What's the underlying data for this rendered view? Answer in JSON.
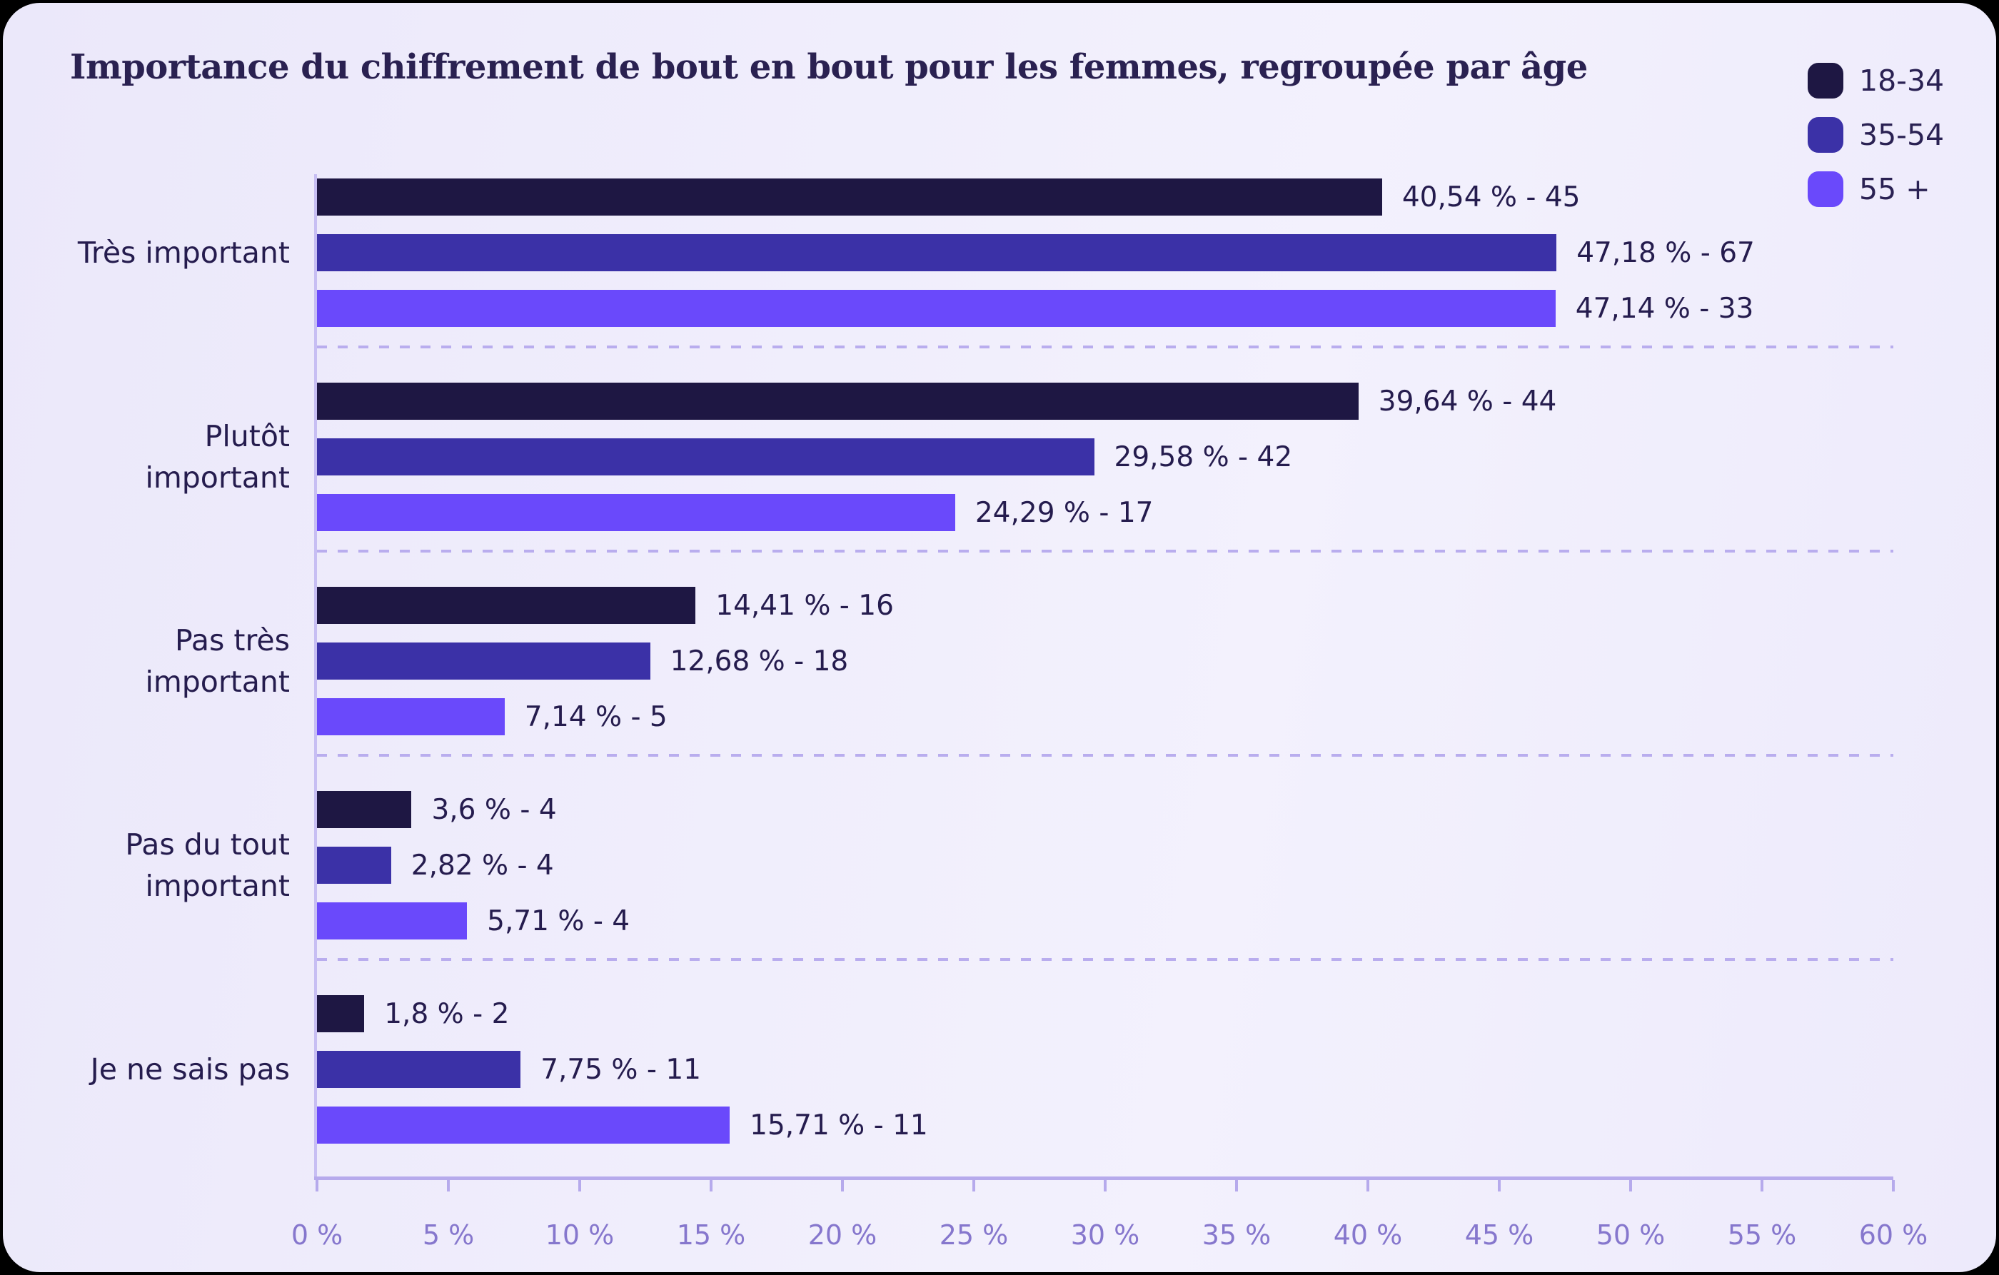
{
  "title": "Importance du chiffrement de bout en bout pour les femmes, regroupée par âge",
  "legend": {
    "items": [
      {
        "label": "18-34",
        "color": "#1e1743"
      },
      {
        "label": "35-54",
        "color": "#3b31a7"
      },
      {
        "label": "55 +",
        "color": "#6a49fb"
      }
    ]
  },
  "colors": {
    "outside": "#000000",
    "card_background_left": "#ebe8fa",
    "card_background_right": "#f3f1fd",
    "title_text": "#2a2151",
    "label_text": "#251c4e",
    "axis_line": "#b6aaec",
    "vertical_axis_line": "#c7bef3",
    "grid_dash": "#b9adee",
    "tick_label": "#8677cd",
    "series": [
      "#1e1743",
      "#3b31a7",
      "#6a49fb"
    ]
  },
  "chart_data": {
    "type": "bar",
    "orientation": "horizontal",
    "title": "Importance du chiffrement de bout en bout pour les femmes, regroupée par âge",
    "categories": [
      "Très important",
      "Plutôt important",
      "Pas très important",
      "Pas du tout important",
      "Je ne sais pas"
    ],
    "category_lines": [
      [
        "Très important"
      ],
      [
        "Plutôt",
        "important"
      ],
      [
        "Pas très",
        "important"
      ],
      [
        "Pas du tout",
        "important"
      ],
      [
        "Je ne sais pas"
      ]
    ],
    "series": [
      {
        "name": "18-34",
        "values": [
          40.54,
          39.64,
          14.41,
          3.6,
          1.8
        ],
        "counts": [
          45,
          44,
          16,
          4,
          2
        ],
        "labels": [
          "40,54 % - 45",
          "39,64 % - 44",
          "14,41 % - 16",
          "3,6 % - 4",
          "1,8 % - 2"
        ]
      },
      {
        "name": "35-54",
        "values": [
          47.18,
          29.58,
          12.68,
          2.82,
          7.75
        ],
        "counts": [
          67,
          42,
          18,
          4,
          11
        ],
        "labels": [
          "47,18 % - 67",
          "29,58 % - 42",
          "12,68 % - 18",
          "2,82 % - 4",
          "7,75 % - 11"
        ]
      },
      {
        "name": "55 +",
        "values": [
          47.14,
          24.29,
          7.14,
          5.71,
          15.71
        ],
        "counts": [
          33,
          17,
          5,
          4,
          11
        ],
        "labels": [
          "47,14 % - 33",
          "24,29 % - 17",
          "7,14 % - 5",
          "5,71 % - 4",
          "15,71 % - 11"
        ]
      }
    ],
    "xlim": [
      0,
      60
    ],
    "x_tick_step": 5,
    "x_ticks": [
      "0 %",
      "5 %",
      "10 %",
      "15 %",
      "20 %",
      "25 %",
      "30 %",
      "35 %",
      "40 %",
      "45 %",
      "50 %",
      "55 %",
      "60 %"
    ],
    "grid": "dashed horizontal separators between category groups",
    "legend_position": "top-right"
  }
}
